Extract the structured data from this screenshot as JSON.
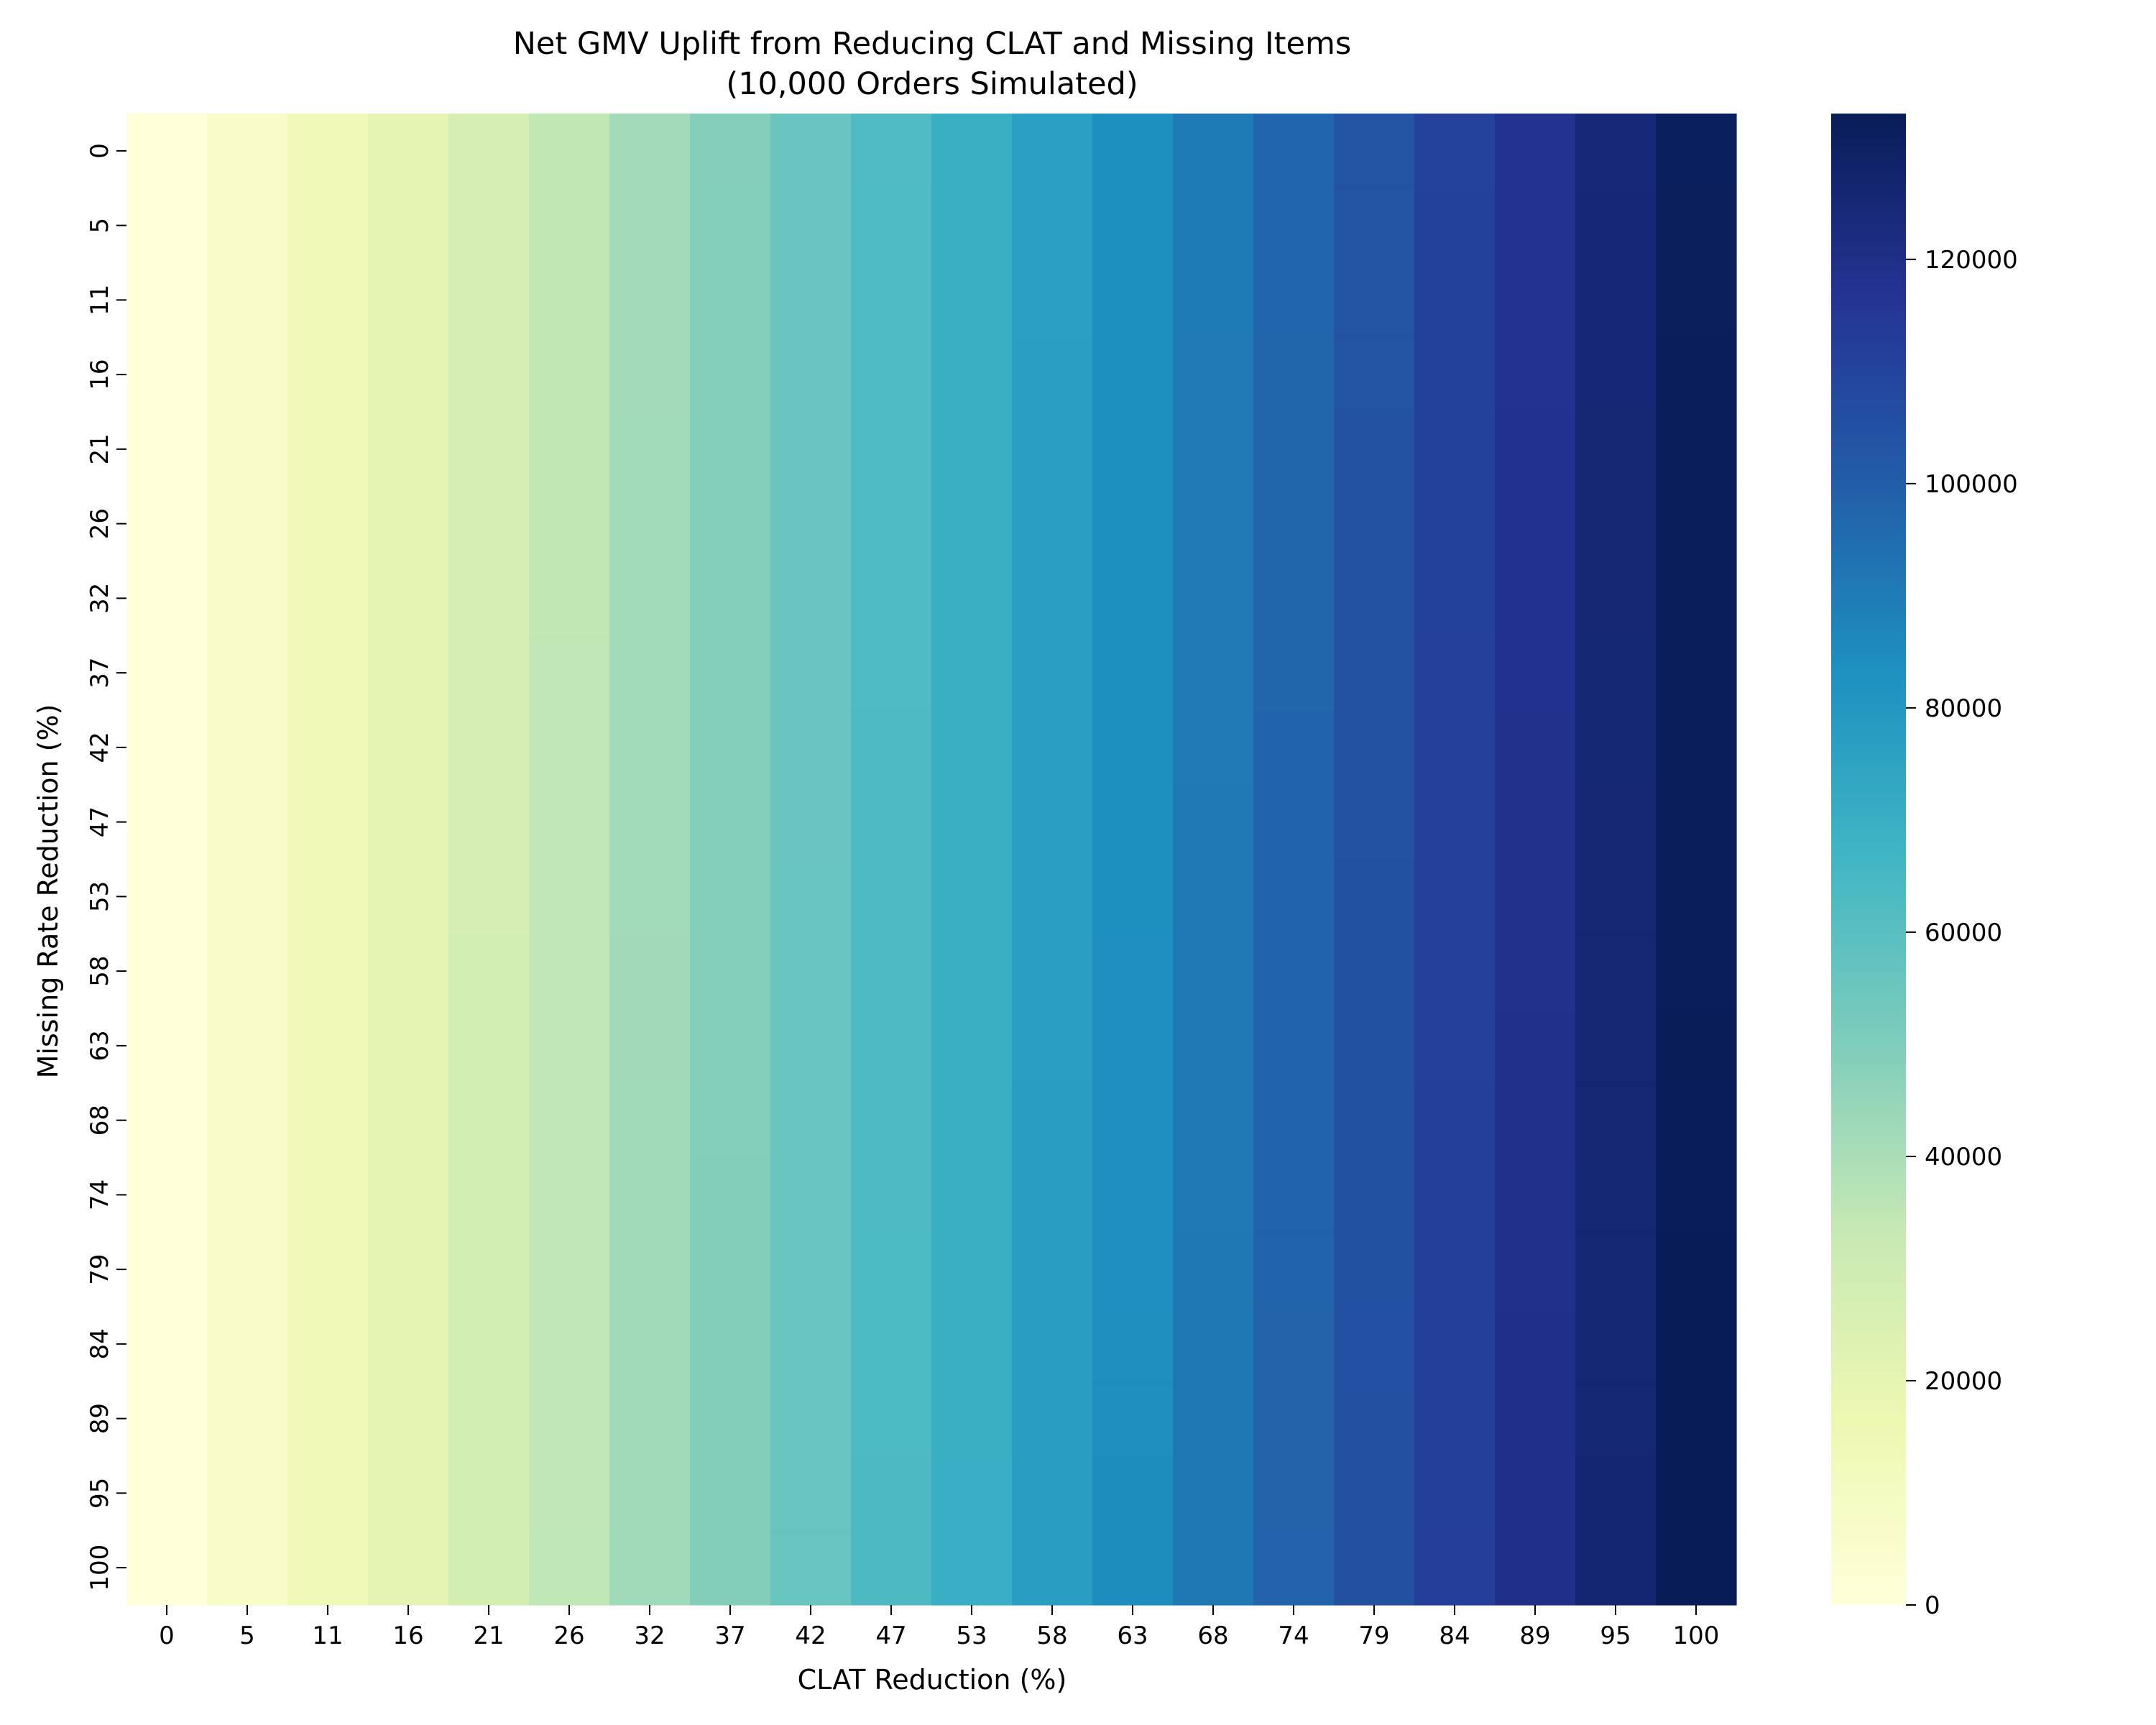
{
  "chart_data": {
    "type": "heatmap",
    "title": "Net GMV Uplift from Reducing CLAT and Missing Items",
    "subtitle": "(10,000 Orders Simulated)",
    "xlabel": "CLAT Reduction (%)",
    "ylabel": "Missing Rate Reduction (%)",
    "x_categories": [
      "0",
      "5",
      "11",
      "16",
      "21",
      "26",
      "32",
      "37",
      "42",
      "47",
      "53",
      "58",
      "63",
      "68",
      "74",
      "79",
      "84",
      "89",
      "95",
      "100"
    ],
    "y_categories": [
      "0",
      "5",
      "11",
      "16",
      "21",
      "26",
      "32",
      "37",
      "42",
      "47",
      "53",
      "58",
      "63",
      "68",
      "74",
      "79",
      "84",
      "89",
      "95",
      "100"
    ],
    "column_values": [
      0,
      6900,
      13800,
      20700,
      27600,
      34600,
      41600,
      48600,
      55600,
      62600,
      69600,
      76500,
      83400,
      90300,
      97200,
      104100,
      111000,
      117900,
      124800,
      131700
    ],
    "row_extra_per_step": 80,
    "colorbar": {
      "min": 0,
      "max": 133000,
      "ticks": [
        0,
        20000,
        40000,
        60000,
        80000,
        100000,
        120000
      ],
      "colormap": "YlGnBu",
      "stops": [
        "#ffffd9",
        "#edf8b1",
        "#c7e9b4",
        "#7fcdbb",
        "#41b6c4",
        "#1d91c0",
        "#225ea8",
        "#253494",
        "#081d58"
      ]
    },
    "grid": false,
    "legend": "colorbar-right"
  }
}
